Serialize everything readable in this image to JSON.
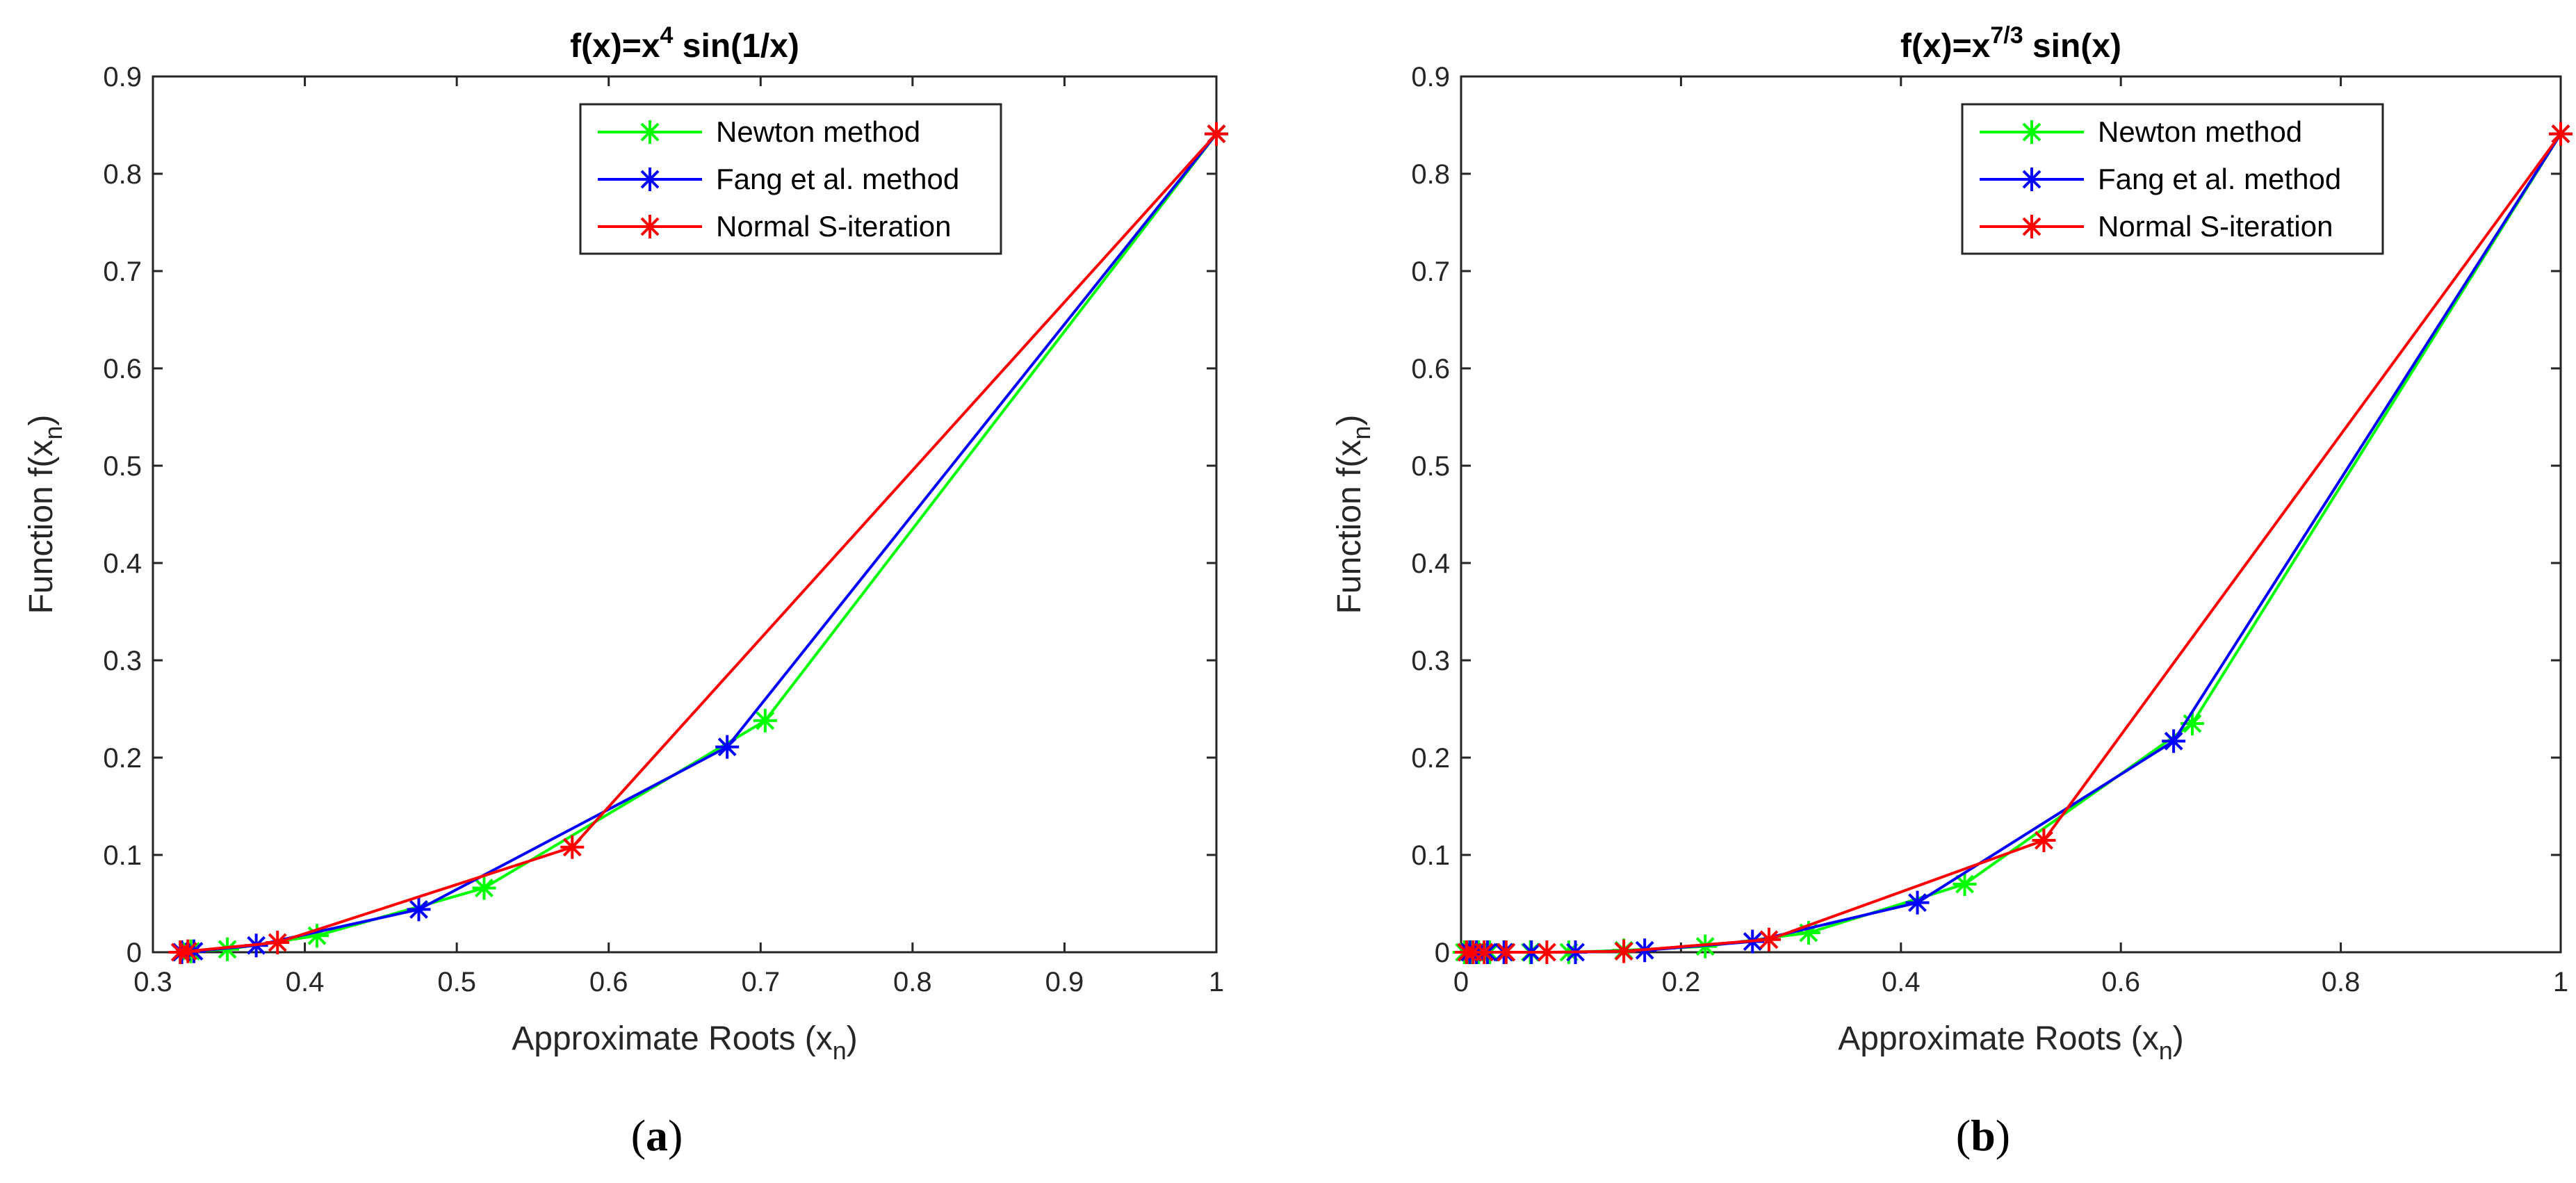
{
  "chart_data": [
    {
      "type": "line",
      "caption_letter": "a",
      "title": {
        "base": "f(x)=x",
        "exponent": "4",
        "rest": " sin(1/x)"
      },
      "xlabel": {
        "text": "Approximate Roots (x",
        "sub": "n",
        "close": ")"
      },
      "ylabel": {
        "text": "Function f(x",
        "sub": "n",
        "close": ")"
      },
      "xlim": [
        0.3,
        1
      ],
      "ylim": [
        0,
        0.9
      ],
      "xticks": [
        "0.3",
        "0.4",
        "0.5",
        "0.6",
        "0.7",
        "0.8",
        "0.9",
        "1"
      ],
      "yticks": [
        "0",
        "0.1",
        "0.2",
        "0.3",
        "0.4",
        "0.5",
        "0.6",
        "0.7",
        "0.8",
        "0.9"
      ],
      "legend_position": "top-right",
      "series": [
        {
          "name": "Newton method",
          "color": "#00ff00",
          "x": [
            1.0,
            0.703,
            0.518,
            0.408,
            0.349,
            0.325,
            0.319,
            0.318
          ],
          "y": [
            0.841,
            0.238,
            0.066,
            0.017,
            0.003,
            0.001,
            0.0,
            0.0
          ]
        },
        {
          "name": "Fang et al. method",
          "color": "#0000ff",
          "x": [
            1.0,
            0.678,
            0.475,
            0.368,
            0.327,
            0.319,
            0.318
          ],
          "y": [
            0.841,
            0.211,
            0.044,
            0.007,
            0.001,
            0.0,
            0.0
          ]
        },
        {
          "name": "Normal S-iteration",
          "color": "#ff0000",
          "x": [
            1.0,
            0.576,
            0.382,
            0.323,
            0.318
          ],
          "y": [
            0.841,
            0.108,
            0.01,
            0.001,
            0.0
          ]
        }
      ]
    },
    {
      "type": "line",
      "caption_letter": "b",
      "title": {
        "base": "f(x)=x",
        "exponent": "7/3",
        "rest": " sin(x)"
      },
      "xlabel": {
        "text": "Approximate Roots (x",
        "sub": "n",
        "close": ")"
      },
      "ylabel": {
        "text": "Function f(x",
        "sub": "n",
        "close": ")"
      },
      "xlim": [
        0,
        1
      ],
      "ylim": [
        0,
        0.9
      ],
      "xticks": [
        "0",
        "0.2",
        "0.4",
        "0.6",
        "0.8",
        "1"
      ],
      "yticks": [
        "0",
        "0.1",
        "0.2",
        "0.3",
        "0.4",
        "0.5",
        "0.6",
        "0.7",
        "0.8",
        "0.9"
      ],
      "legend_position": "top-right",
      "series": [
        {
          "name": "Newton method",
          "color": "#00ff00",
          "x": [
            1.0,
            0.665,
            0.458,
            0.316,
            0.222,
            0.148,
            0.098,
            0.063,
            0.04,
            0.026,
            0.016,
            0.01,
            0.006,
            0.003
          ],
          "y": [
            0.841,
            0.235,
            0.07,
            0.02,
            0.006,
            0.002,
            0.0,
            0.0,
            0.0,
            0.0,
            0.0,
            0.0,
            0.0,
            0.0
          ]
        },
        {
          "name": "Fang et al. method",
          "color": "#0000ff",
          "x": [
            1.0,
            0.648,
            0.415,
            0.265,
            0.167,
            0.104,
            0.064,
            0.039,
            0.024,
            0.014,
            0.008,
            0.005
          ],
          "y": [
            0.841,
            0.217,
            0.051,
            0.011,
            0.002,
            0.0,
            0.0,
            0.0,
            0.0,
            0.0,
            0.0,
            0.0
          ]
        },
        {
          "name": "Normal S-iteration",
          "color": "#ff0000",
          "x": [
            1.0,
            0.53,
            0.28,
            0.148,
            0.078,
            0.041,
            0.021,
            0.011,
            0.005
          ],
          "y": [
            0.841,
            0.115,
            0.013,
            0.001,
            0.0,
            0.0,
            0.0,
            0.0,
            0.0
          ]
        }
      ]
    }
  ]
}
